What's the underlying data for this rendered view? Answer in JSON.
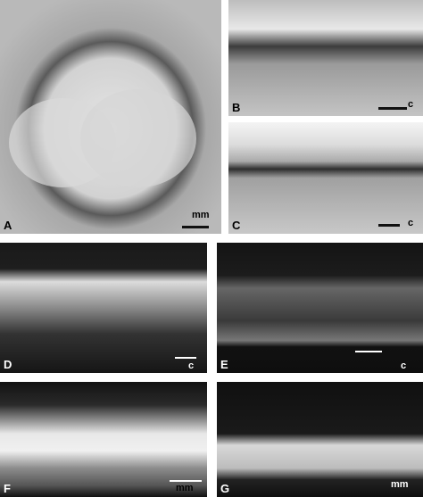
{
  "panels": [
    {
      "letter": "A",
      "scale": "mm"
    },
    {
      "letter": "B",
      "scale": "c"
    },
    {
      "letter": "C",
      "scale": "c"
    },
    {
      "letter": "D",
      "scale": "c"
    },
    {
      "letter": "E",
      "scale": "c"
    },
    {
      "letter": "F",
      "scale": "mm"
    },
    {
      "letter": "G",
      "scale": "mm"
    }
  ]
}
